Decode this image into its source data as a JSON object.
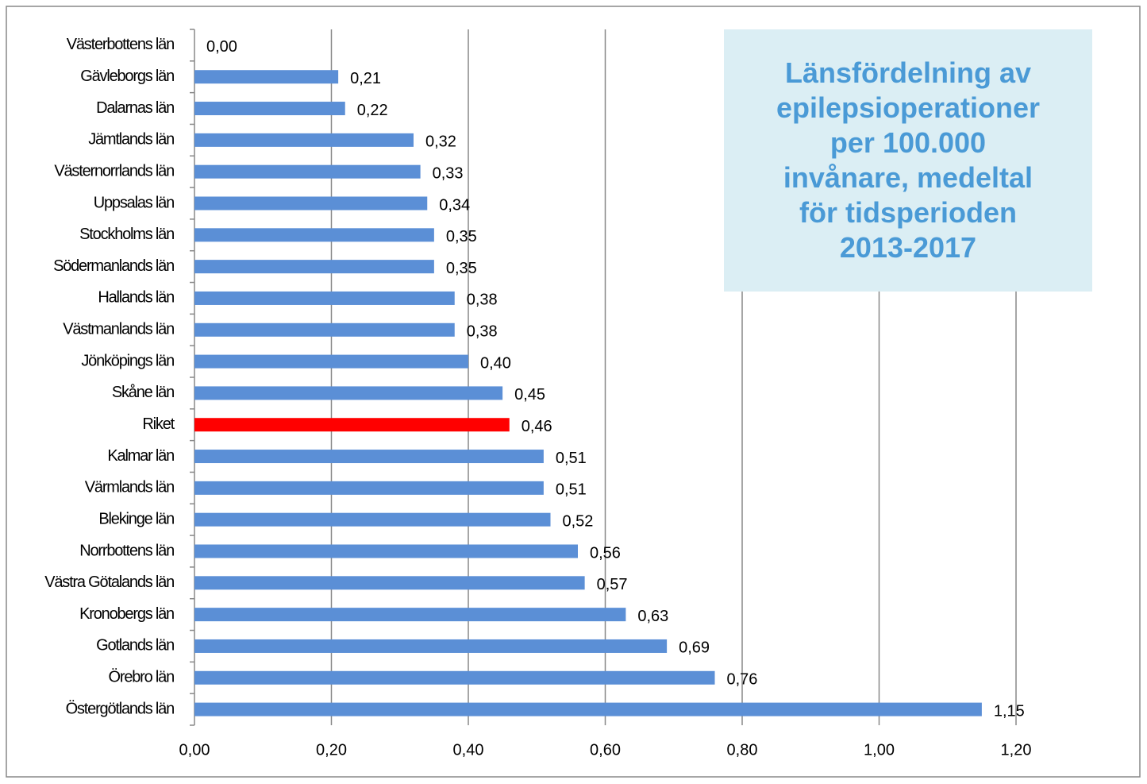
{
  "chart_data": {
    "type": "bar",
    "orientation": "horizontal",
    "title": [
      "Länsfördelning av",
      "epilepsioperationer",
      "per 100.000",
      "invånare, medeltal",
      "för tidsperioden",
      "2013-2017"
    ],
    "categories": [
      "Västerbottens län",
      "Gävleborgs län",
      "Dalarnas län",
      "Jämtlands län",
      "Västernorrlands län",
      "Uppsalas län",
      "Stockholms län",
      "Södermanlands län",
      "Hallands län",
      "Västmanlands län",
      "Jönköpings län",
      "Skåne län",
      "Riket",
      "Kalmar län",
      "Värmlands län",
      "Blekinge län",
      "Norrbottens län",
      "Västra Götalands län",
      "Kronobergs län",
      "Gotlands län",
      "Örebro län",
      "Östergötlands län"
    ],
    "values": [
      0.0,
      0.21,
      0.22,
      0.32,
      0.33,
      0.34,
      0.35,
      0.35,
      0.38,
      0.38,
      0.4,
      0.45,
      0.46,
      0.51,
      0.51,
      0.52,
      0.56,
      0.57,
      0.63,
      0.69,
      0.76,
      1.15
    ],
    "value_labels": [
      "0,00",
      "0,21",
      "0,22",
      "0,32",
      "0,33",
      "0,34",
      "0,35",
      "0,35",
      "0,38",
      "0,38",
      "0,40",
      "0,45",
      "0,46",
      "0,51",
      "0,51",
      "0,52",
      "0,56",
      "0,57",
      "0,63",
      "0,69",
      "0,76",
      "1,15"
    ],
    "colors": [
      "#5b8fd6",
      "#5b8fd6",
      "#5b8fd6",
      "#5b8fd6",
      "#5b8fd6",
      "#5b8fd6",
      "#5b8fd6",
      "#5b8fd6",
      "#5b8fd6",
      "#5b8fd6",
      "#5b8fd6",
      "#5b8fd6",
      "#ff0000",
      "#5b8fd6",
      "#5b8fd6",
      "#5b8fd6",
      "#5b8fd6",
      "#5b8fd6",
      "#5b8fd6",
      "#5b8fd6",
      "#5b8fd6",
      "#5b8fd6"
    ],
    "xlim": [
      0,
      1.2
    ],
    "xticks": [
      {
        "value": 0,
        "label": "0,00"
      },
      {
        "value": 0.2,
        "label": "0,20"
      },
      {
        "value": 0.4,
        "label": "0,40"
      },
      {
        "value": 0.6,
        "label": "0,60"
      },
      {
        "value": 0.8,
        "label": "0,80"
      },
      {
        "value": 1.0,
        "label": "1,00"
      },
      {
        "value": 1.2,
        "label": "1,20"
      }
    ],
    "grid": true
  }
}
